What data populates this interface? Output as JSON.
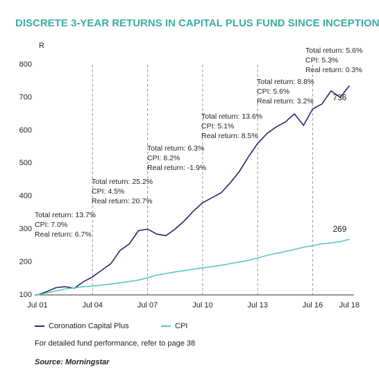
{
  "chart_data": {
    "type": "line",
    "title": "DISCRETE 3-YEAR RETURNS IN CAPITAL PLUS FUND SINCE INCEPTION",
    "y_label": "R",
    "x": [
      2001.5,
      2002,
      2002.5,
      2003,
      2003.5,
      2004,
      2004.5,
      2005,
      2005.5,
      2006,
      2006.5,
      2007,
      2007.5,
      2008,
      2008.5,
      2009,
      2009.5,
      2010,
      2010.5,
      2011,
      2011.5,
      2012,
      2012.5,
      2013,
      2013.5,
      2014,
      2014.5,
      2015,
      2015.5,
      2016,
      2016.5,
      2017,
      2017.5,
      2018,
      2018.5
    ],
    "series": [
      {
        "name": "Coronation Capital Plus",
        "color": "#1f2a6e",
        "values": [
          100,
          110,
          122,
          125,
          120,
          140,
          155,
          175,
          195,
          235,
          255,
          295,
          300,
          285,
          280,
          300,
          325,
          355,
          380,
          395,
          410,
          440,
          475,
          520,
          560,
          590,
          610,
          625,
          650,
          615,
          665,
          680,
          720,
          700,
          736
        ]
      },
      {
        "name": "CPI",
        "color": "#5cc8be",
        "values": [
          100,
          106,
          112,
          118,
          121,
          125,
          127,
          130,
          133,
          137,
          141,
          145,
          152,
          160,
          165,
          170,
          174,
          178,
          182,
          186,
          190,
          195,
          200,
          205,
          212,
          220,
          226,
          232,
          238,
          245,
          250,
          255,
          258,
          262,
          269
        ]
      }
    ],
    "xlim": [
      2001.5,
      2018.6
    ],
    "xticks": [
      {
        "value": 2001.5,
        "label": "Jul 01"
      },
      {
        "value": 2004.5,
        "label": "Jul 04"
      },
      {
        "value": 2007.5,
        "label": "Jul 07"
      },
      {
        "value": 2010.5,
        "label": "Jul 10"
      },
      {
        "value": 2013.5,
        "label": "Jul 13"
      },
      {
        "value": 2016.5,
        "label": "Jul 16"
      },
      {
        "value": 2018.5,
        "label": "Jul 18"
      }
    ],
    "ylim": [
      100,
      800
    ],
    "yticks": [
      100,
      200,
      300,
      400,
      500,
      600,
      700,
      800
    ],
    "annotations": [
      [
        "Total return: 13.7%",
        "CPI: 7.0%",
        "Real return: 6.7%"
      ],
      [
        "Total return: 25.2%",
        "CPI: 4.5%",
        "Real return: 20.7%"
      ],
      [
        "Total return: 6.3%",
        "CPI: 8.2%",
        "Real return: -1.9%"
      ],
      [
        "Total return: 13.6%",
        "CPI: 5.1%",
        "Real return: 8.5%"
      ],
      [
        "Total return: 8.8%",
        "CPI: 5.6%",
        "Real return: 3.2%"
      ],
      [
        "Total return: 5.6%",
        "CPI: 5.3%",
        "Real return: 0.3%"
      ]
    ],
    "footnote": "For detailed fund performance, refer to page 38",
    "source": "Source: Morningstar"
  }
}
